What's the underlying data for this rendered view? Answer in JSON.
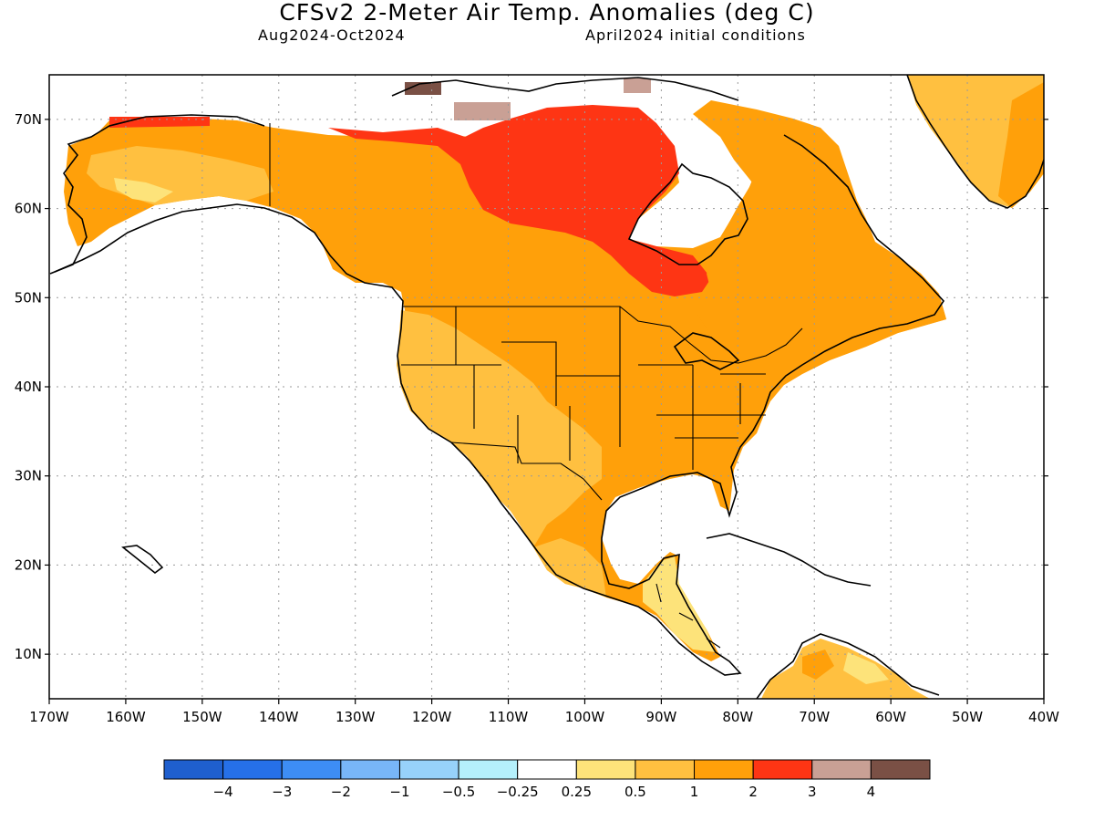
{
  "header": {
    "title": "CFSv2 2-Meter Air Temp. Anomalies (deg C)",
    "period": "Aug2024-Oct2024",
    "initial_conditions": "April2024 initial conditions"
  },
  "map": {
    "projection": "lat-lon",
    "lon_range": [
      -170,
      -40
    ],
    "lat_range": [
      5,
      75
    ],
    "lat_labels": [
      "10N",
      "20N",
      "30N",
      "40N",
      "50N",
      "60N",
      "70N"
    ],
    "lon_labels": [
      "170W",
      "160W",
      "150W",
      "140W",
      "130W",
      "120W",
      "110W",
      "100W",
      "90W",
      "80W",
      "70W",
      "60W",
      "50W",
      "40W"
    ],
    "grid": "dotted"
  },
  "legend": {
    "units": "deg C",
    "colors": [
      "#1f5fce",
      "#2670e8",
      "#3d8df5",
      "#78b6f8",
      "#97d2fa",
      "#b5f0fb",
      "#ffffff",
      "#fde37a",
      "#ffc040",
      "#ffa00a",
      "#fe3514",
      "#c9a095",
      "#7a5045"
    ],
    "labels": [
      "−4",
      "−3",
      "−2",
      "−1",
      "−0.5",
      "−0.25",
      "0.25",
      "0.5",
      "1",
      "2",
      "3",
      "4"
    ]
  }
}
